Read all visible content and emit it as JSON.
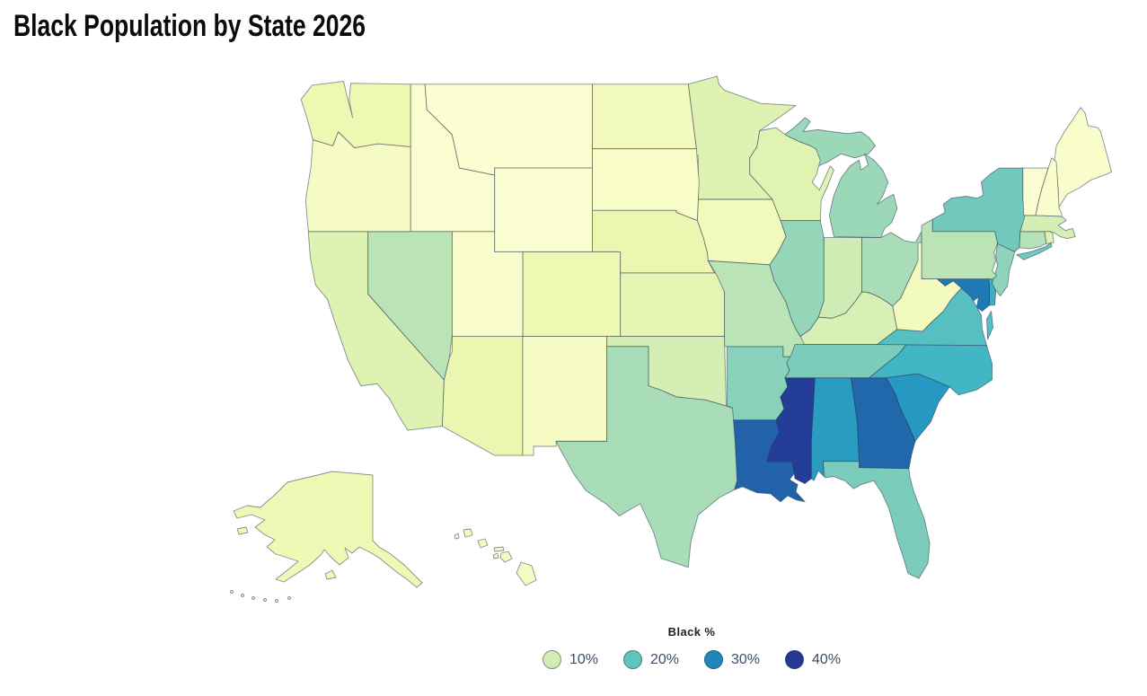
{
  "title": "Black Population by State 2026",
  "legend": {
    "title": "Black %",
    "items": [
      {
        "label": "10%",
        "value": 10
      },
      {
        "label": "20%",
        "value": 20
      },
      {
        "label": "30%",
        "value": 30
      },
      {
        "label": "40%",
        "value": 40
      }
    ]
  },
  "map": {
    "border_color": "rgba(38,52,78,0.55)",
    "background": "#ffffff"
  },
  "color_scale": {
    "type": "YlGnBu",
    "domain": [
      0,
      46
    ],
    "stops": [
      "#ffffd9",
      "#edf8b1",
      "#c7e9b4",
      "#7fcdbb",
      "#41b6c4",
      "#1d91c0",
      "#225ea8",
      "#253494",
      "#081d58"
    ]
  },
  "chart_data": {
    "type": "choropleth",
    "region": "United States",
    "title": "Black Population by State 2026",
    "value_label": "Black %",
    "unit": "%",
    "states": [
      {
        "code": "AL",
        "name": "Alabama",
        "value": 27
      },
      {
        "code": "AK",
        "name": "Alaska",
        "value": 5
      },
      {
        "code": "AZ",
        "name": "Arizona",
        "value": 6
      },
      {
        "code": "AR",
        "name": "Arkansas",
        "value": 16.5
      },
      {
        "code": "CA",
        "name": "California",
        "value": 8
      },
      {
        "code": "CO",
        "name": "Colorado",
        "value": 5.5
      },
      {
        "code": "CT",
        "name": "Connecticut",
        "value": 13
      },
      {
        "code": "DE",
        "name": "Delaware",
        "value": 24
      },
      {
        "code": "DC",
        "name": "District of Columbia",
        "value": 45
      },
      {
        "code": "FL",
        "name": "Florida",
        "value": 17.5
      },
      {
        "code": "GA",
        "name": "Georgia",
        "value": 33.5
      },
      {
        "code": "HI",
        "name": "Hawaii",
        "value": 3
      },
      {
        "code": "ID",
        "name": "Idaho",
        "value": 1.5
      },
      {
        "code": "IL",
        "name": "Illinois",
        "value": 15.5
      },
      {
        "code": "IN",
        "name": "Indiana",
        "value": 10.5
      },
      {
        "code": "IA",
        "name": "Iowa",
        "value": 4.5
      },
      {
        "code": "KS",
        "name": "Kansas",
        "value": 7
      },
      {
        "code": "KY",
        "name": "Kentucky",
        "value": 9
      },
      {
        "code": "LA",
        "name": "Louisiana",
        "value": 34
      },
      {
        "code": "ME",
        "name": "Maine",
        "value": 2
      },
      {
        "code": "MD",
        "name": "Maryland",
        "value": 31.5
      },
      {
        "code": "MA",
        "name": "Massachusetts",
        "value": 9.5
      },
      {
        "code": "MI",
        "name": "Michigan",
        "value": 15
      },
      {
        "code": "MN",
        "name": "Minnesota",
        "value": 8
      },
      {
        "code": "MS",
        "name": "Mississippi",
        "value": 39
      },
      {
        "code": "MO",
        "name": "Missouri",
        "value": 12.5
      },
      {
        "code": "MT",
        "name": "Montana",
        "value": 1
      },
      {
        "code": "NE",
        "name": "Nebraska",
        "value": 6
      },
      {
        "code": "NV",
        "name": "Nevada",
        "value": 12.5
      },
      {
        "code": "NH",
        "name": "New Hampshire",
        "value": 2
      },
      {
        "code": "NJ",
        "name": "New Jersey",
        "value": 16
      },
      {
        "code": "NM",
        "name": "New Mexico",
        "value": 3
      },
      {
        "code": "NY",
        "name": "New York",
        "value": 18.5
      },
      {
        "code": "NC",
        "name": "North Carolina",
        "value": 23
      },
      {
        "code": "ND",
        "name": "North Dakota",
        "value": 4
      },
      {
        "code": "OH",
        "name": "Ohio",
        "value": 14
      },
      {
        "code": "OK",
        "name": "Oklahoma",
        "value": 9.5
      },
      {
        "code": "OR",
        "name": "Oregon",
        "value": 3
      },
      {
        "code": "PA",
        "name": "Pennsylvania",
        "value": 12.5
      },
      {
        "code": "RI",
        "name": "Rhode Island",
        "value": 7.5
      },
      {
        "code": "SC",
        "name": "South Carolina",
        "value": 27.5
      },
      {
        "code": "SD",
        "name": "South Dakota",
        "value": 2.5
      },
      {
        "code": "TN",
        "name": "Tennessee",
        "value": 17.5
      },
      {
        "code": "TX",
        "name": "Texas",
        "value": 14
      },
      {
        "code": "UT",
        "name": "Utah",
        "value": 2
      },
      {
        "code": "VT",
        "name": "Vermont",
        "value": 1.5
      },
      {
        "code": "VA",
        "name": "Virginia",
        "value": 21
      },
      {
        "code": "WA",
        "name": "Washington",
        "value": 5.5
      },
      {
        "code": "WV",
        "name": "West Virginia",
        "value": 4
      },
      {
        "code": "WI",
        "name": "Wisconsin",
        "value": 7.5
      },
      {
        "code": "WY",
        "name": "Wyoming",
        "value": 1.5
      }
    ]
  }
}
